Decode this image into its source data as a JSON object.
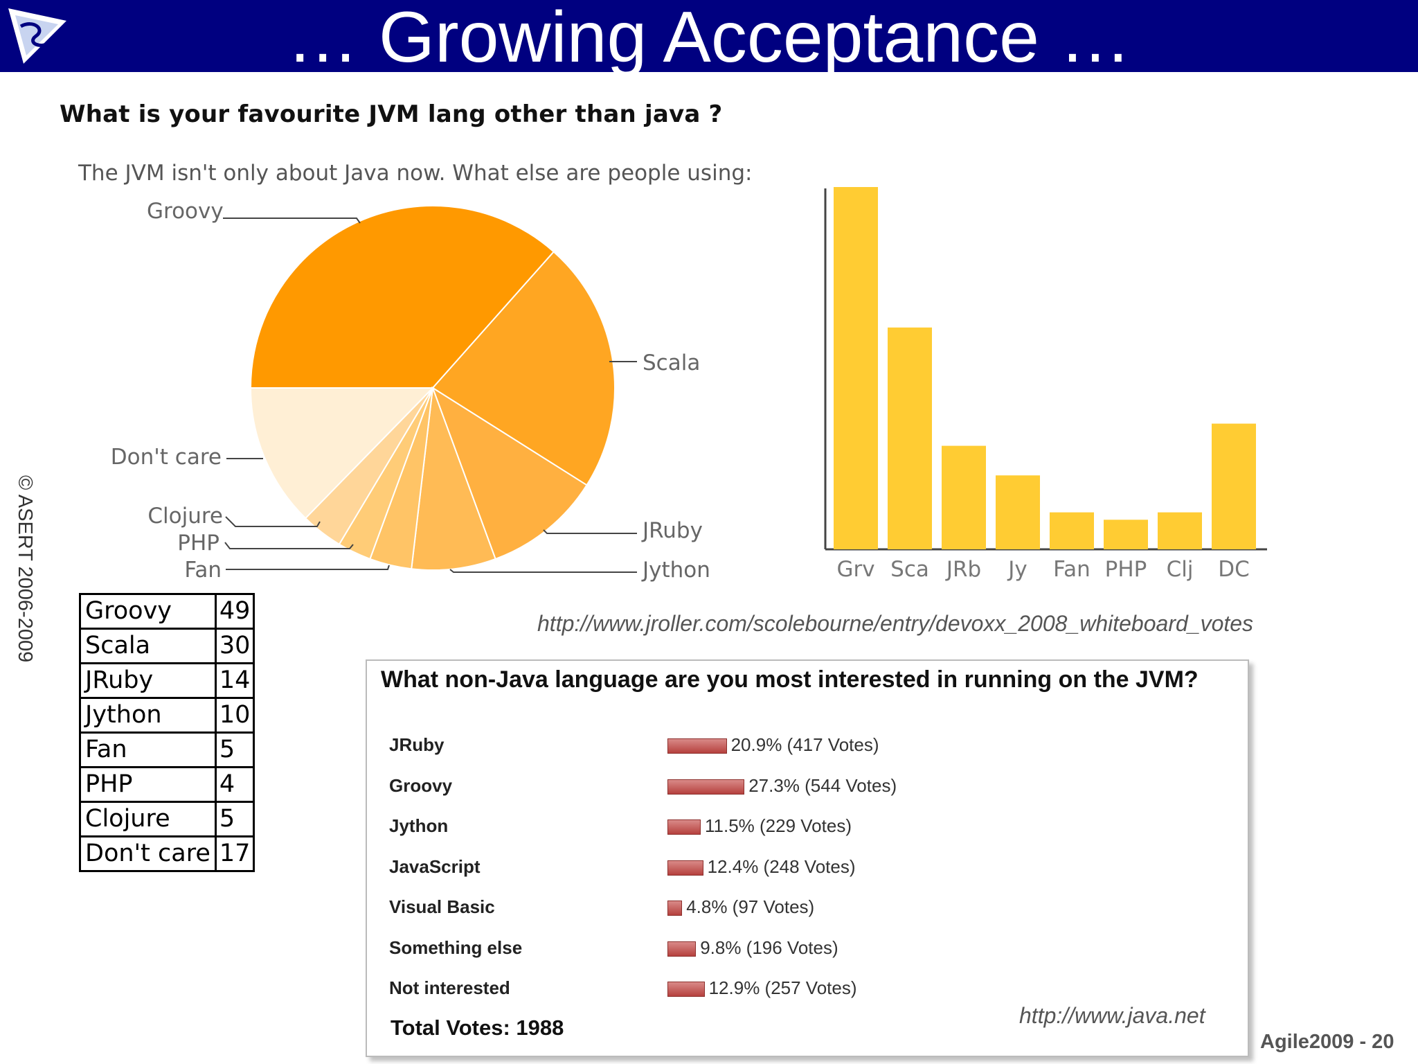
{
  "slide": {
    "title": "… Growing Acceptance …",
    "copyright": "© ASERT 2006-2009",
    "footer": "Agile2009 - 20"
  },
  "colors": {
    "header_bg": "#000080",
    "pie": [
      "#ff9900",
      "#ffa622",
      "#ffb040",
      "#ffbb55",
      "#ffc466",
      "#ffcc77",
      "#ffd699",
      "#ffefd5"
    ],
    "bar": "#ffcc33",
    "poll_bar": "#c0504d"
  },
  "survey1": {
    "question": "What is your favourite JVM lang other than java ?",
    "intro": "The JVM isn't only about Java now. What else are people using:",
    "url": "http://www.jroller.com/scolebourne/entry/devoxx_2008_whiteboard_votes",
    "table": [
      {
        "lang": "Groovy",
        "votes": "49"
      },
      {
        "lang": "Scala",
        "votes": "30"
      },
      {
        "lang": "JRuby",
        "votes": "14"
      },
      {
        "lang": "Jython",
        "votes": "10"
      },
      {
        "lang": "Fan",
        "votes": "5"
      },
      {
        "lang": "PHP",
        "votes": "4"
      },
      {
        "lang": "Clojure",
        "votes": "5"
      },
      {
        "lang": "Don't care",
        "votes": "17"
      }
    ]
  },
  "chart_data": [
    {
      "type": "pie",
      "title": "",
      "labels": [
        "Groovy",
        "Scala",
        "JRuby",
        "Jython",
        "Fan",
        "PHP",
        "Clojure",
        "Don't care"
      ],
      "values": [
        49,
        30,
        14,
        10,
        5,
        4,
        5,
        17
      ]
    },
    {
      "type": "bar",
      "title": "",
      "categories": [
        "Grv",
        "Sca",
        "JRb",
        "Jy",
        "Fan",
        "PHP",
        "Clj",
        "DC"
      ],
      "values": [
        49,
        30,
        14,
        10,
        5,
        4,
        5,
        17
      ],
      "ylim": [
        0,
        49
      ],
      "grid": false
    },
    {
      "type": "bar",
      "orientation": "horizontal",
      "title": "What non-Java language are you most interested in running on the JVM?",
      "categories": [
        "JRuby",
        "Groovy",
        "Jython",
        "JavaScript",
        "Visual Basic",
        "Something else",
        "Not interested"
      ],
      "values": [
        20.9,
        27.3,
        11.5,
        12.4,
        4.8,
        9.8,
        12.9
      ],
      "votes": [
        417,
        544,
        229,
        248,
        97,
        196,
        257
      ],
      "labels": [
        "20.9% (417 Votes)",
        "27.3% (544 Votes)",
        "11.5% (229 Votes)",
        "12.4% (248 Votes)",
        "4.8% (97 Votes)",
        "9.8% (196 Votes)",
        "12.9% (257 Votes)"
      ]
    }
  ],
  "survey2": {
    "total": "Total Votes: 1988",
    "url": "http://www.java.net"
  }
}
